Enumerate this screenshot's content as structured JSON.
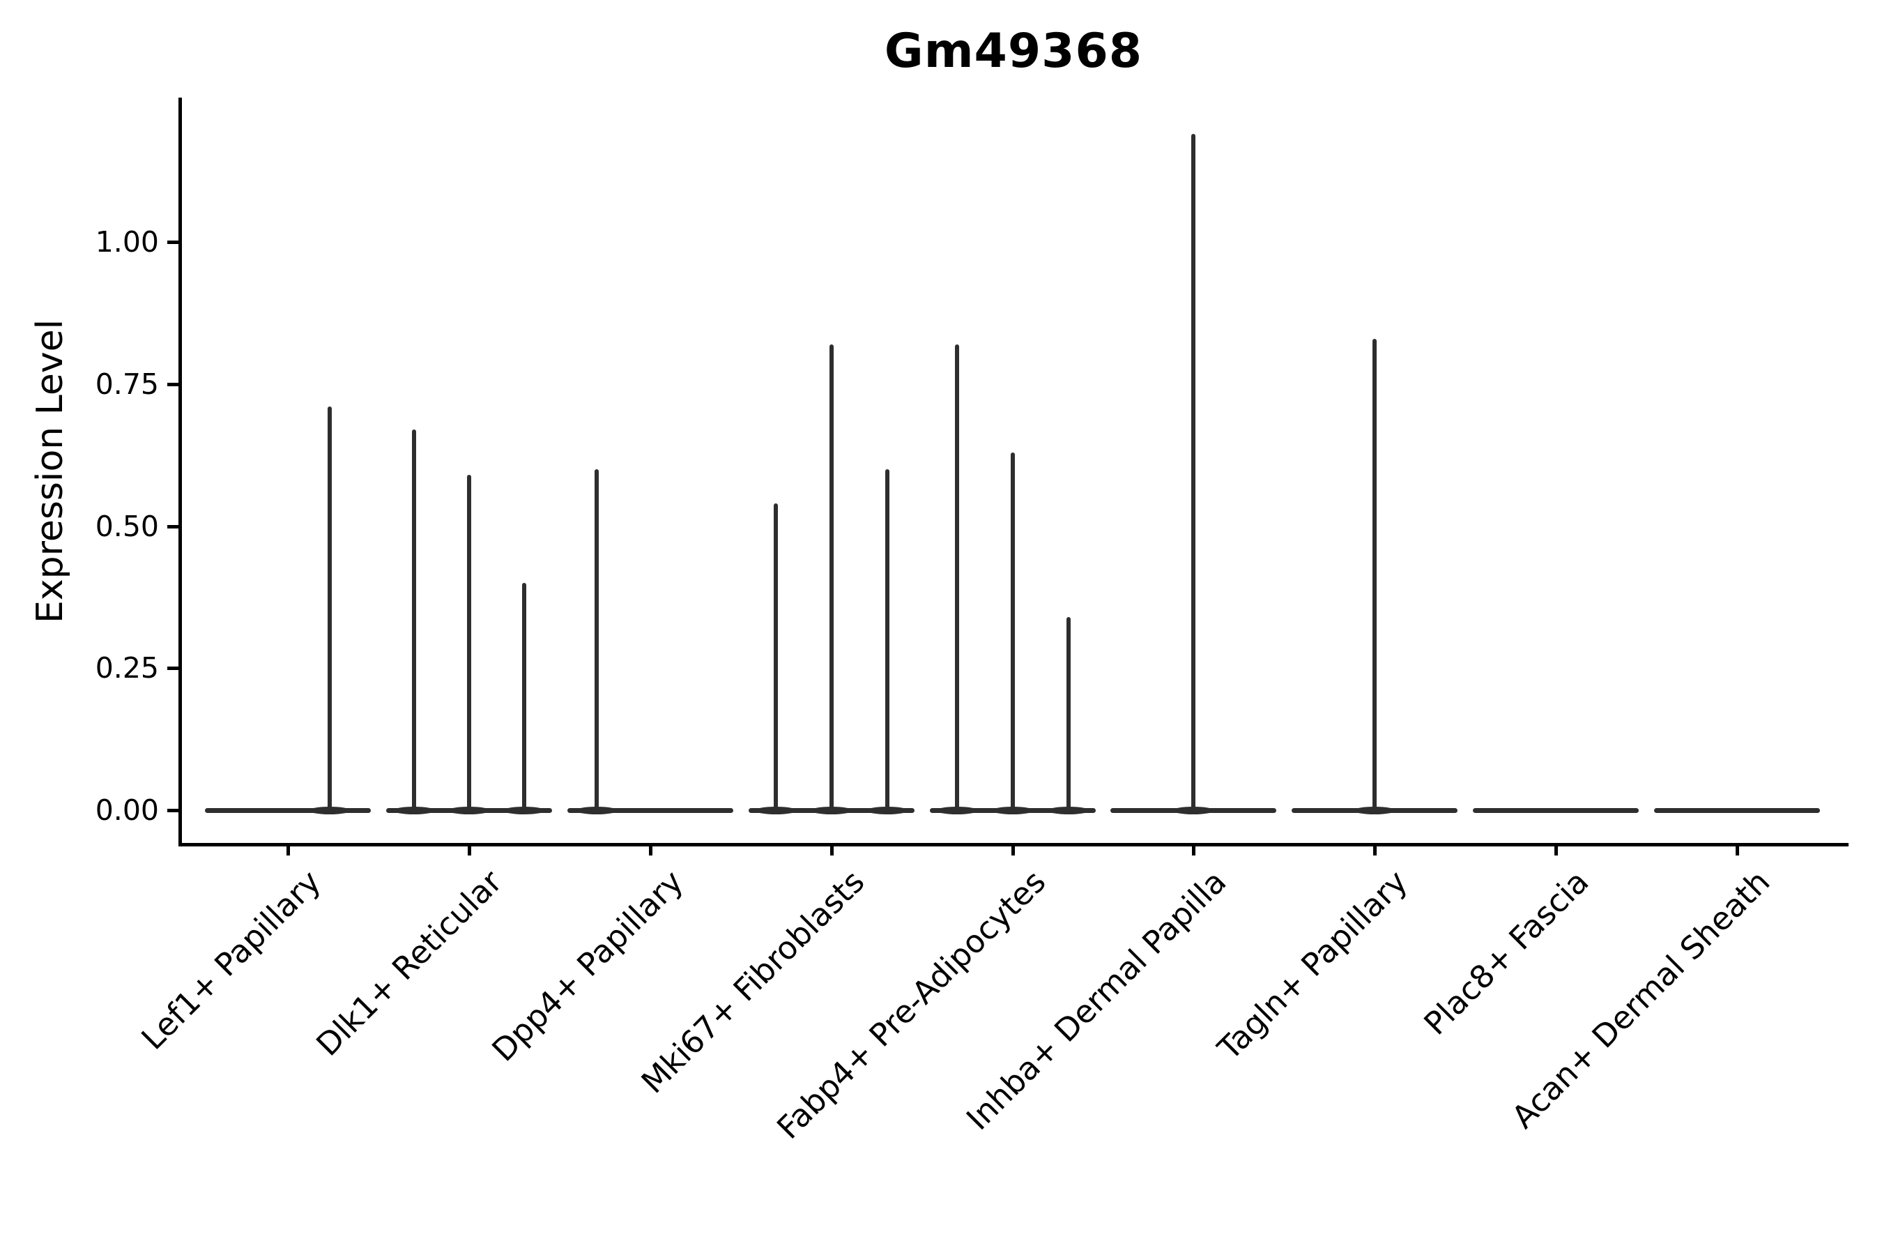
{
  "title": "Gm49368",
  "y_axis": {
    "label": "Expression Level",
    "ticks": [
      {
        "label": "0.00",
        "value": 0.0
      },
      {
        "label": "0.25",
        "value": 0.25
      },
      {
        "label": "0.50",
        "value": 0.5
      },
      {
        "label": "0.75",
        "value": 0.75
      },
      {
        "label": "1.00",
        "value": 1.0
      }
    ]
  },
  "chart_data": {
    "type": "violin",
    "title": "Gm49368",
    "xlabel": "",
    "ylabel": "Expression Level",
    "ylim": [
      0,
      1.25
    ],
    "y_tick_values": [
      0.0,
      0.25,
      0.5,
      0.75,
      1.0
    ],
    "grid": false,
    "legend": false,
    "description": "Violin plot of expression level per cell type; most density is a flat line at 0 with thin spikes up to the maximum expressed value(s).",
    "categories": [
      "Lef1+ Papillary",
      "Dlk1+ Reticular",
      "Dpp4+ Papillary",
      "Mki67+ Fibroblasts",
      "Fabp4+ Pre-Adipocytes",
      "Inhba+ Dermal Papilla",
      "Tagln+ Papillary",
      "Plac8+ Fascia",
      "Acan+ Dermal Sheath"
    ],
    "series": [
      {
        "category": "Lef1+ Papillary",
        "spikes": [
          {
            "x_offset": 60,
            "max_value": 0.71
          }
        ]
      },
      {
        "category": "Dlk1+ Reticular",
        "spikes": [
          {
            "x_offset": -79,
            "max_value": 0.67
          },
          {
            "x_offset": 0,
            "max_value": 0.59
          },
          {
            "x_offset": 79,
            "max_value": 0.4
          }
        ]
      },
      {
        "category": "Dpp4+ Papillary",
        "spikes": [
          {
            "x_offset": -77,
            "max_value": 0.6
          }
        ]
      },
      {
        "category": "Mki67+ Fibroblasts",
        "spikes": [
          {
            "x_offset": -80,
            "max_value": 0.54
          },
          {
            "x_offset": 0,
            "max_value": 0.82
          },
          {
            "x_offset": 80,
            "max_value": 0.6
          }
        ]
      },
      {
        "category": "Fabp4+ Pre-Adipocytes",
        "spikes": [
          {
            "x_offset": -80,
            "max_value": 0.82
          },
          {
            "x_offset": 0,
            "max_value": 0.63
          },
          {
            "x_offset": 80,
            "max_value": 0.34
          }
        ]
      },
      {
        "category": "Inhba+ Dermal Papilla",
        "spikes": [
          {
            "x_offset": 0,
            "max_value": 1.19
          }
        ]
      },
      {
        "category": "Tagln+ Papillary",
        "spikes": [
          {
            "x_offset": 0,
            "max_value": 0.83
          }
        ]
      },
      {
        "category": "Plac8+ Fascia",
        "spikes": []
      },
      {
        "category": "Acan+ Dermal Sheath",
        "spikes": []
      }
    ]
  },
  "colors": {
    "background": "#ffffff",
    "violin": "#2e2e2e",
    "axis": "#000000",
    "text": "#000000"
  }
}
